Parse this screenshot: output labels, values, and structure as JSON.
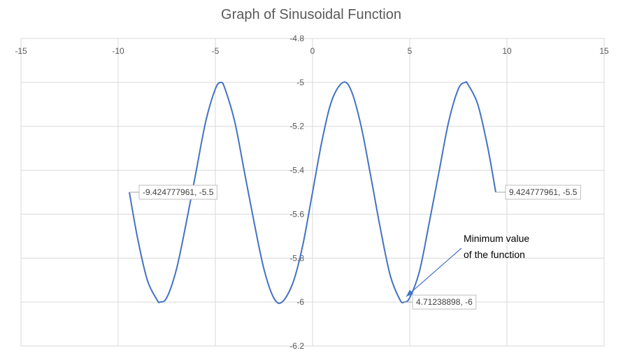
{
  "chart_data": {
    "type": "scatter",
    "title": "Graph of Sinusoidal Function",
    "xlim": [
      -15,
      15
    ],
    "ylim": [
      -6.2,
      -4.8
    ],
    "y_axis_reversed": true,
    "x_axis_position": "top",
    "grid": true,
    "x_ticks": [
      "-15",
      "-10",
      "-5",
      "0",
      "5",
      "10",
      "15"
    ],
    "y_ticks": [
      "-4.8",
      "-5",
      "-5.2",
      "-5.4",
      "-5.6",
      "-5.8",
      "-6",
      "-6.2"
    ],
    "series": [
      {
        "color": "#4472c4",
        "x": [
          -9.4248,
          -9.0,
          -8.5,
          -8.0,
          -7.854,
          -7.5,
          -7.0,
          -6.5,
          -6.0,
          -5.5,
          -5.0,
          -4.7124,
          -4.5,
          -4.0,
          -3.5,
          -3.0,
          -2.5,
          -2.0,
          -1.5708,
          -1.0,
          -0.5,
          0.0,
          0.5,
          1.0,
          1.5708,
          2.0,
          2.5,
          3.0,
          3.5,
          4.0,
          4.5,
          4.7124,
          5.0,
          5.5,
          6.0,
          6.5,
          7.0,
          7.5,
          7.854,
          8.0,
          8.5,
          9.0,
          9.4248
        ],
        "y": [
          -5.5,
          -5.71,
          -5.9,
          -5.99,
          -6.0,
          -5.98,
          -5.85,
          -5.64,
          -5.41,
          -5.18,
          -5.03,
          -5.0,
          -5.03,
          -5.18,
          -5.41,
          -5.64,
          -5.85,
          -5.98,
          -6.0,
          -5.91,
          -5.74,
          -5.5,
          -5.26,
          -5.08,
          -5.0,
          -5.04,
          -5.2,
          -5.43,
          -5.67,
          -5.88,
          -5.99,
          -6.0,
          -5.98,
          -5.86,
          -5.64,
          -5.41,
          -5.18,
          -5.03,
          -5.0,
          -5.01,
          -5.1,
          -5.29,
          -5.5
        ]
      }
    ],
    "data_labels": [
      {
        "x": -9.424777961,
        "y": -5.5,
        "text": "-9.424777961, -5.5"
      },
      {
        "x": 9.424777961,
        "y": -5.5,
        "text": "9.424777961, -5.5"
      },
      {
        "x": 4.71238898,
        "y": -6,
        "text": "4.71238898, -6"
      }
    ],
    "annotation": {
      "line1": "Minimum value",
      "line2": "of the function",
      "target_x": 4.71238898,
      "target_y": -6
    }
  }
}
